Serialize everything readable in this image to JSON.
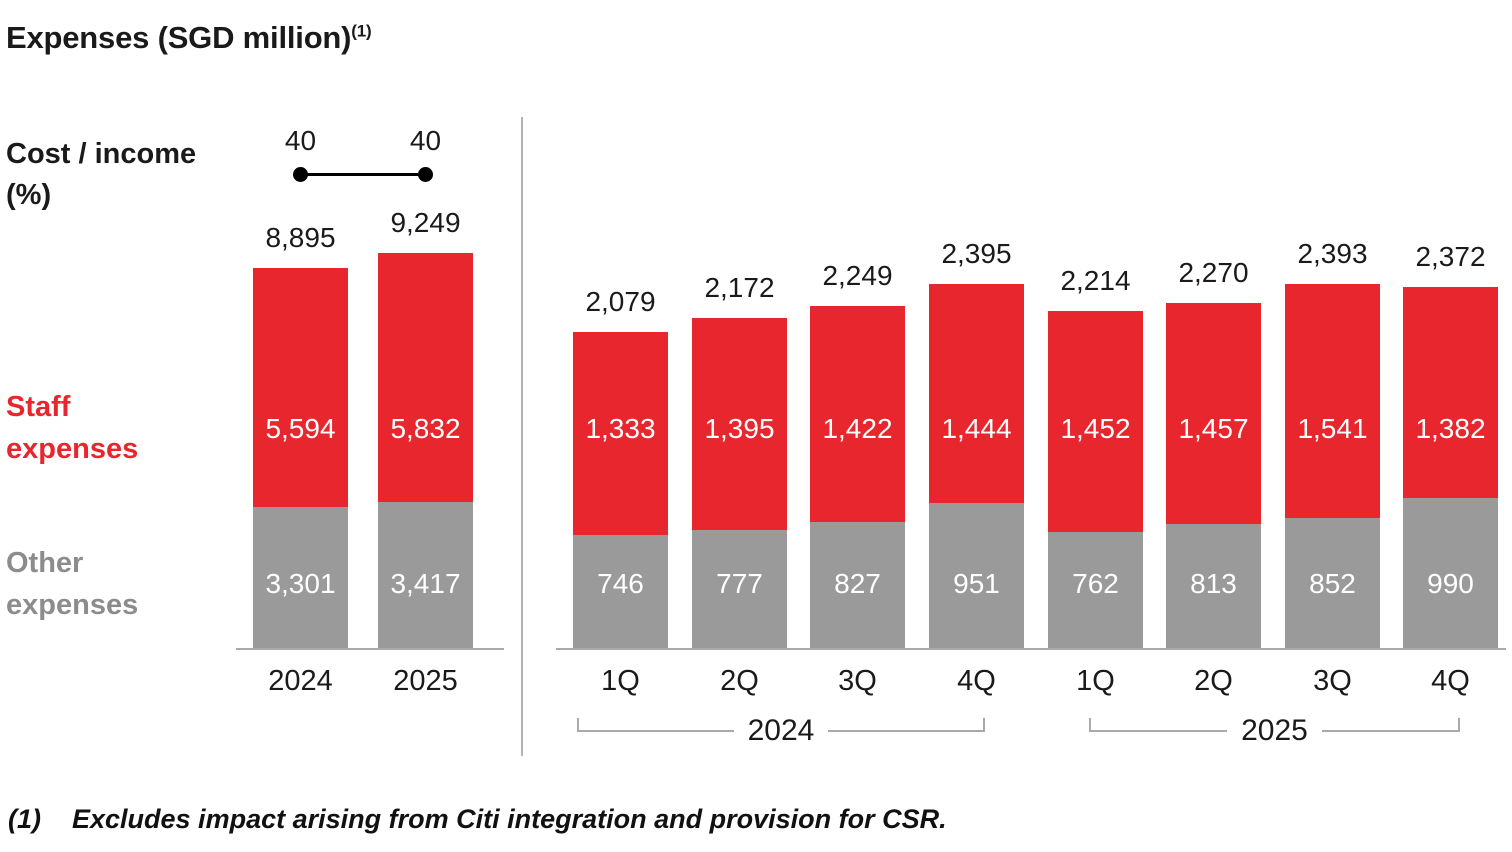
{
  "title": {
    "text": "Expenses (SGD million)",
    "superscript": "(1)"
  },
  "cost_income": {
    "label": "Cost / income (%)"
  },
  "legend": {
    "staff": "Staff expenses",
    "other": "Other expenses"
  },
  "footnote": {
    "marker": "(1)",
    "text": "Excludes impact arising from Citi integration and provision for CSR."
  },
  "colors": {
    "staff": "#e8262d",
    "other": "#9a9a9a",
    "axis": "#a9a9a9",
    "divider": "#b3b3b3",
    "bracket": "#a9a9a9",
    "other_label_text": "#8c8c8c",
    "text": "#1a1a1a"
  },
  "chart_data": [
    {
      "type": "bar",
      "subtype": "stacked",
      "name": "annual-expenses",
      "title": "Expenses (SGD million) - full year",
      "categories": [
        "2024",
        "2025"
      ],
      "series": [
        {
          "name": "Other expenses",
          "color_key": "other",
          "values": [
            3301,
            3417
          ]
        },
        {
          "name": "Staff expenses",
          "color_key": "staff",
          "values": [
            5594,
            5832
          ]
        }
      ],
      "totals": [
        8895,
        9249
      ],
      "cost_income_pct": [
        40,
        40
      ],
      "grid": false,
      "legend_position": "left"
    },
    {
      "type": "bar",
      "subtype": "stacked",
      "name": "quarterly-expenses",
      "title": "Expenses (SGD million) - quarterly",
      "categories": [
        "1Q",
        "2Q",
        "3Q",
        "4Q",
        "1Q",
        "2Q",
        "3Q",
        "4Q"
      ],
      "group_labels": [
        "2024",
        "2025"
      ],
      "series": [
        {
          "name": "Other expenses",
          "color_key": "other",
          "values": [
            746,
            777,
            827,
            951,
            762,
            813,
            852,
            990
          ]
        },
        {
          "name": "Staff expenses",
          "color_key": "staff",
          "values": [
            1333,
            1395,
            1422,
            1444,
            1452,
            1457,
            1541,
            1382
          ]
        }
      ],
      "totals": [
        2079,
        2172,
        2249,
        2395,
        2214,
        2270,
        2393,
        2372
      ],
      "grid": false,
      "legend_position": "left"
    }
  ]
}
